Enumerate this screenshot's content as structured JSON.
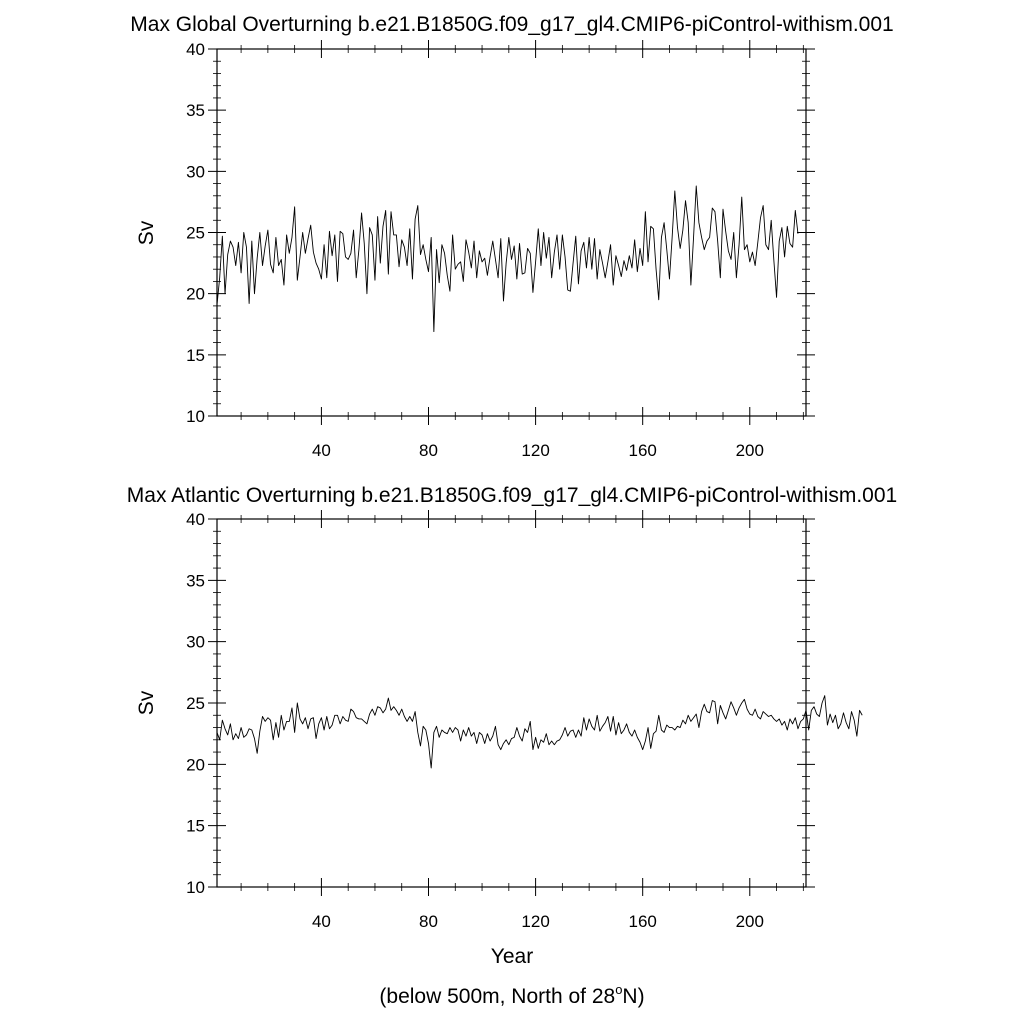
{
  "chart_data": [
    {
      "type": "line",
      "title": "Max Global Overturning b.e21.B1850G.f09_g17_gl4.CMIP6-piControl-withism.001",
      "ylabel": "Sv",
      "xlim": [
        1,
        221
      ],
      "ylim": [
        10,
        40
      ],
      "xticks": [
        40,
        80,
        120,
        160,
        200
      ],
      "xtick_labels": [
        "40",
        "80",
        "120",
        "160",
        "200"
      ],
      "yticks": [
        10,
        15,
        20,
        25,
        30,
        35,
        40
      ],
      "ytick_labels": [
        "10",
        "15",
        "20",
        "25",
        "30",
        "35",
        "40"
      ],
      "series": [
        {
          "name": "Max Global Overturning",
          "color": "#000000",
          "x_start": 1,
          "x_step": 1,
          "values": [
            19.1,
            21.3,
            24.7,
            20.0,
            23.2,
            24.3,
            23.8,
            22.3,
            24.2,
            21.7,
            25.0,
            23.8,
            19.2,
            24.3,
            20.0,
            22.9,
            25.0,
            22.3,
            23.9,
            25.2,
            22.4,
            21.7,
            24.6,
            22.3,
            22.8,
            20.7,
            24.8,
            23.3,
            24.6,
            27.1,
            21.1,
            23.0,
            25.0,
            23.3,
            24.5,
            25.6,
            23.4,
            22.5,
            22.0,
            21.2,
            24.0,
            21.3,
            25.1,
            23.1,
            24.8,
            21.0,
            25.1,
            24.9,
            23.0,
            22.8,
            23.3,
            25.2,
            21.3,
            23.6,
            26.6,
            24.1,
            20.0,
            25.4,
            24.8,
            21.1,
            26.3,
            22.5,
            25.5,
            26.8,
            21.6,
            26.7,
            24.8,
            24.8,
            22.2,
            24.4,
            23.8,
            22.3,
            25.3,
            21.2,
            26.1,
            27.2,
            23.2,
            24.0,
            22.8,
            21.8,
            24.6,
            16.9,
            23.6,
            20.9,
            24.0,
            23.3,
            21.5,
            20.2,
            24.8,
            22.0,
            22.4,
            22.6,
            21.0,
            24.4,
            23.4,
            22.1,
            24.3,
            21.3,
            23.5,
            22.6,
            22.9,
            21.5,
            23.0,
            24.3,
            22.8,
            21.3,
            24.5,
            19.4,
            22.5,
            24.6,
            22.8,
            23.9,
            21.2,
            24.1,
            21.6,
            21.7,
            23.7,
            23.3,
            20.1,
            22.6,
            25.3,
            22.3,
            25.0,
            22.9,
            24.6,
            21.3,
            23.4,
            24.8,
            22.0,
            24.8,
            23.0,
            20.3,
            20.2,
            22.5,
            24.7,
            20.8,
            23.5,
            24.2,
            22.1,
            24.6,
            22.0,
            24.5,
            21.2,
            23.6,
            22.5,
            21.3,
            22.6,
            24.0,
            20.7,
            23.1,
            22.3,
            21.4,
            22.7,
            21.9,
            23.1,
            22.1,
            24.4,
            21.8,
            23.7,
            22.3,
            26.7,
            22.6,
            25.5,
            25.3,
            22.0,
            19.5,
            24.6,
            25.8,
            23.6,
            21.2,
            24.6,
            28.4,
            25.4,
            23.7,
            25.2,
            27.6,
            25.8,
            20.7,
            24.6,
            28.8,
            25.8,
            24.6,
            23.6,
            24.3,
            24.6,
            27.0,
            26.7,
            24.3,
            21.3,
            26.9,
            25.1,
            23.5,
            22.8,
            25.0,
            21.3,
            24.0,
            27.9,
            23.6,
            24.0,
            22.6,
            23.4,
            22.3,
            24.2,
            26.2,
            27.2,
            24.0,
            23.6,
            26.0,
            22.7,
            19.7,
            24.3,
            25.4,
            23.0,
            25.5,
            24.1,
            23.8,
            26.8,
            24.9
          ]
        }
      ]
    },
    {
      "type": "line",
      "title": "Max Atlantic Overturning b.e21.B1850G.f09_g17_gl4.CMIP6-piControl-withism.001",
      "xlabel": "Year",
      "ylabel": "Sv",
      "xlim": [
        1,
        221
      ],
      "ylim": [
        10,
        40
      ],
      "xticks": [
        40,
        80,
        120,
        160,
        200
      ],
      "xtick_labels": [
        "40",
        "80",
        "120",
        "160",
        "200"
      ],
      "yticks": [
        10,
        15,
        20,
        25,
        30,
        35,
        40
      ],
      "ytick_labels": [
        "10",
        "15",
        "20",
        "25",
        "30",
        "35",
        "40"
      ],
      "series": [
        {
          "name": "Max Atlantic Overturning",
          "color": "#000000",
          "x_start": 1,
          "x_step": 1,
          "values": [
            22.6,
            22.0,
            23.6,
            22.9,
            22.4,
            23.3,
            22.0,
            22.5,
            22.1,
            23.0,
            22.2,
            22.4,
            22.9,
            22.8,
            22.1,
            20.9,
            22.7,
            23.9,
            23.5,
            23.8,
            23.6,
            22.0,
            23.4,
            22.2,
            24.0,
            22.8,
            23.5,
            23.5,
            24.6,
            22.6,
            25.0,
            23.7,
            23.3,
            23.8,
            22.9,
            23.7,
            23.8,
            22.1,
            23.3,
            23.8,
            22.8,
            23.9,
            22.9,
            23.2,
            24.0,
            24.0,
            23.3,
            23.9,
            23.6,
            23.5,
            24.5,
            24.3,
            23.8,
            23.7,
            23.7,
            23.5,
            23.3,
            24.1,
            24.5,
            24.0,
            24.7,
            24.6,
            24.2,
            24.5,
            25.4,
            24.4,
            24.7,
            24.4,
            24.0,
            24.5,
            23.9,
            23.5,
            23.9,
            23.5,
            24.3,
            22.6,
            21.5,
            23.1,
            22.8,
            21.7,
            19.7,
            22.6,
            23.1,
            22.2,
            22.8,
            22.6,
            22.5,
            23.0,
            22.6,
            23.0,
            22.8,
            21.9,
            22.8,
            22.3,
            23.0,
            22.3,
            22.6,
            21.7,
            22.6,
            22.4,
            21.7,
            22.5,
            21.9,
            22.3,
            23.1,
            21.6,
            21.2,
            21.7,
            22.0,
            21.6,
            22.1,
            22.2,
            23.0,
            22.3,
            21.9,
            22.9,
            22.6,
            23.5,
            21.2,
            22.2,
            21.3,
            22.0,
            21.8,
            22.5,
            21.6,
            21.9,
            21.6,
            21.9,
            22.0,
            22.4,
            23.0,
            22.3,
            22.7,
            22.8,
            22.2,
            22.8,
            22.3,
            23.8,
            22.8,
            23.7,
            23.1,
            22.8,
            24.0,
            22.7,
            23.1,
            23.4,
            23.9,
            22.7,
            23.9,
            22.4,
            23.4,
            22.5,
            22.8,
            23.3,
            22.6,
            22.3,
            22.8,
            22.2,
            21.8,
            21.2,
            21.9,
            23.0,
            21.3,
            22.5,
            22.7,
            24.0,
            22.8,
            22.6,
            23.2,
            23.0,
            23.0,
            22.8,
            23.1,
            23.0,
            23.6,
            23.3,
            24.0,
            23.5,
            23.8,
            24.1,
            23.0,
            24.3,
            24.9,
            24.3,
            24.2,
            25.2,
            25.1,
            23.3,
            24.8,
            24.2,
            23.7,
            24.4,
            25.1,
            24.6,
            24.0,
            24.6,
            25.0,
            25.3,
            24.5,
            24.1,
            24.0,
            24.5,
            23.9,
            23.7,
            24.3,
            24.1,
            23.9,
            24.0,
            23.7,
            23.5,
            23.7,
            23.2,
            23.5,
            22.8,
            23.7,
            23.3,
            23.8,
            22.9,
            23.5,
            23.7,
            24.4,
            22.8,
            24.4,
            24.7,
            24.1,
            23.9,
            25.0,
            25.6,
            23.2,
            24.1,
            23.4,
            24.0,
            22.9,
            23.3,
            24.2,
            23.4,
            22.9,
            24.3,
            23.6,
            22.3,
            24.4,
            24.0
          ]
        }
      ]
    }
  ],
  "figure_caption": "(below 500m, North of 28",
  "caption_superscript": "o",
  "caption_suffix": "N)"
}
